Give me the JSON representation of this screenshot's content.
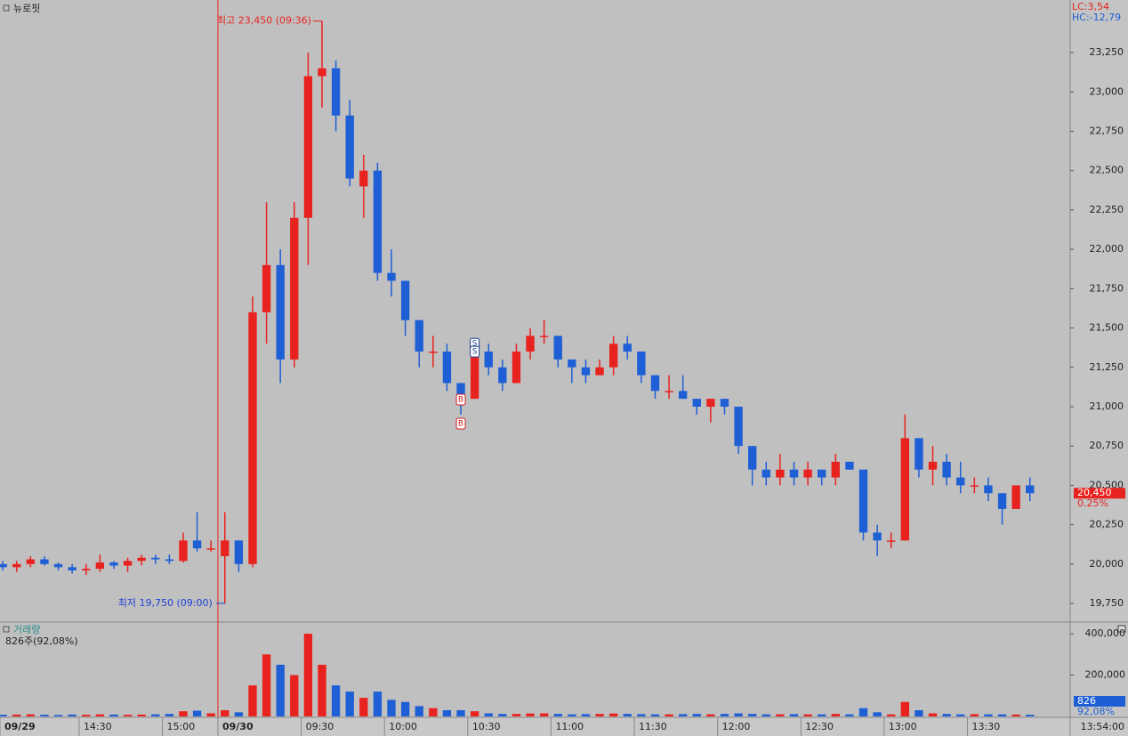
{
  "chart_data": {
    "type": "candlestick",
    "title": "뉴로핏",
    "indicators": [
      "LC:3,54",
      "HC:-12,79"
    ],
    "high_note": "최고 23,450 (09:36)",
    "low_note": "최저 19,750 (09:00)",
    "open": [
      20000,
      19980,
      20000,
      20030,
      20000,
      19980,
      19960,
      19970,
      20010,
      19990,
      20020,
      20040,
      20030,
      20020,
      20150,
      20100,
      20050,
      20150,
      20000,
      21600,
      21900,
      21300,
      22200,
      23100,
      23150,
      22850,
      22400,
      22500,
      21850,
      21800,
      21550,
      21350,
      21350,
      21150,
      21050,
      21350,
      21250,
      21150,
      21350,
      21450,
      21450,
      21300,
      21250,
      21200,
      21250,
      21400,
      21350,
      21200,
      21100,
      21100,
      21050,
      21000,
      21050,
      21000,
      20750,
      20600,
      20550,
      20600,
      20550,
      20600,
      20550,
      20650,
      20600,
      20200,
      20150,
      20150,
      20800,
      20600,
      20650,
      20550,
      20500,
      20500,
      20450,
      20350,
      20500
    ],
    "high": [
      20020,
      20020,
      20050,
      20050,
      20010,
      20000,
      20000,
      20060,
      20020,
      20040,
      20060,
      20060,
      20060,
      20200,
      20330,
      20150,
      20330,
      20150,
      21700,
      22300,
      22000,
      22300,
      23250,
      23450,
      23200,
      22950,
      22600,
      22550,
      22000,
      21800,
      21550,
      21450,
      21400,
      21150,
      21400,
      21400,
      21300,
      21400,
      21500,
      21550,
      21450,
      21300,
      21300,
      21300,
      21450,
      21450,
      21350,
      21200,
      21200,
      21200,
      21050,
      21050,
      21050,
      21000,
      20750,
      20650,
      20700,
      20650,
      20650,
      20600,
      20700,
      20650,
      20600,
      20250,
      20200,
      20950,
      20800,
      20750,
      20700,
      20650,
      20550,
      20550,
      20450,
      20500,
      20550
    ],
    "low": [
      19960,
      19950,
      19980,
      19990,
      19960,
      19940,
      19930,
      19950,
      19970,
      19950,
      19990,
      20000,
      20000,
      20010,
      20080,
      20080,
      19750,
      19950,
      19980,
      21400,
      21150,
      21250,
      21900,
      22900,
      22750,
      22400,
      22200,
      21800,
      21700,
      21450,
      21250,
      21250,
      21100,
      20950,
      21050,
      21200,
      21100,
      21150,
      21300,
      21400,
      21250,
      21150,
      21150,
      21200,
      21200,
      21300,
      21150,
      21050,
      21050,
      21050,
      20950,
      20900,
      20950,
      20700,
      20500,
      20500,
      20500,
      20500,
      20500,
      20500,
      20500,
      20600,
      20150,
      20050,
      20100,
      20150,
      20550,
      20500,
      20500,
      20450,
      20450,
      20400,
      20250,
      20350,
      20400
    ],
    "close": [
      19980,
      20000,
      20030,
      20000,
      19980,
      19960,
      19970,
      20010,
      19990,
      20020,
      20040,
      20030,
      20020,
      20150,
      20100,
      20100,
      20150,
      20000,
      21600,
      21900,
      21300,
      22200,
      23100,
      23150,
      22850,
      22450,
      22500,
      21850,
      21800,
      21550,
      21350,
      21350,
      21150,
      21050,
      21350,
      21250,
      21150,
      21350,
      21450,
      21450,
      21300,
      21250,
      21200,
      21250,
      21400,
      21350,
      21200,
      21100,
      21100,
      21050,
      21000,
      21050,
      21000,
      20750,
      20600,
      20550,
      20600,
      20550,
      20600,
      20550,
      20650,
      20600,
      20200,
      20150,
      20150,
      20800,
      20600,
      20650,
      20550,
      20500,
      20500,
      20450,
      20350,
      20500,
      20450
    ],
    "volume": [
      8000,
      9000,
      10000,
      8000,
      7000,
      9000,
      8000,
      10000,
      9000,
      8000,
      9000,
      10000,
      12000,
      25000,
      28000,
      15000,
      30000,
      20000,
      150000,
      300000,
      250000,
      200000,
      400000,
      250000,
      150000,
      120000,
      90000,
      120000,
      80000,
      70000,
      50000,
      40000,
      30000,
      30000,
      25000,
      15000,
      12000,
      12000,
      14000,
      15000,
      12000,
      10000,
      11000,
      12000,
      14000,
      12000,
      11000,
      10000,
      10000,
      11000,
      12000,
      10000,
      12000,
      15000,
      12000,
      10000,
      10000,
      11000,
      10000,
      10000,
      12000,
      10000,
      40000,
      20000,
      10000,
      70000,
      30000,
      15000,
      12000,
      10000,
      11000,
      10000,
      10000,
      9000,
      8000
    ],
    "up_color": "#e8231f",
    "down_color": "#1f5fd6",
    "xlim": [
      -0.2,
      76.9
    ],
    "xticks": [
      {
        "value": -0.2,
        "label": "09/29"
      },
      {
        "value": 5.5,
        "label": "14:30"
      },
      {
        "value": 11.5,
        "label": "15:00"
      },
      {
        "value": 15.5,
        "label": "09/30"
      },
      {
        "value": 21.5,
        "label": "09:30"
      },
      {
        "value": 27.5,
        "label": "10:00"
      },
      {
        "value": 33.5,
        "label": "10:30"
      },
      {
        "value": 39.5,
        "label": "11:00"
      },
      {
        "value": 45.5,
        "label": "11:30"
      },
      {
        "value": 51.5,
        "label": "12:00"
      },
      {
        "value": 57.5,
        "label": "12:30"
      },
      {
        "value": 63.5,
        "label": "13:00"
      },
      {
        "value": 69.5,
        "label": "13:30"
      }
    ],
    "last_time": "13:54:00",
    "ylim": [
      19637,
      23584
    ],
    "yticks": [
      {
        "value": 19750,
        "label": "19,750"
      },
      {
        "value": 20000,
        "label": "20,000"
      },
      {
        "value": 20250,
        "label": "20,250"
      },
      {
        "value": 20500,
        "label": "20,500"
      },
      {
        "value": 20750,
        "label": "20,750"
      },
      {
        "value": 21000,
        "label": "21,000"
      },
      {
        "value": 21250,
        "label": "21,250"
      },
      {
        "value": 21500,
        "label": "21,500"
      },
      {
        "value": 21750,
        "label": "21,750"
      },
      {
        "value": 22000,
        "label": "22,000"
      },
      {
        "value": 22250,
        "label": "22,250"
      },
      {
        "value": 22500,
        "label": "22,500"
      },
      {
        "value": 22750,
        "label": "22,750"
      },
      {
        "value": 23000,
        "label": "23,000"
      },
      {
        "value": 23250,
        "label": "23,250"
      }
    ],
    "last_price": {
      "value": 20450,
      "label": "20,450"
    },
    "change": "0.25%",
    "signals": [
      {
        "label": "S",
        "x": 34,
        "y": 21400
      },
      {
        "label": "S",
        "x": 34,
        "y": 21350
      },
      {
        "label": "B",
        "x": 33,
        "y": 21045
      },
      {
        "label": "B",
        "x": 33,
        "y": 20892
      }
    ],
    "volume_title": "거래량",
    "volume_note": "826주(92,08%)",
    "volume_ylim": [
      0,
      452000
    ],
    "volume_yticks": [
      {
        "value": 200000,
        "label": "200,000"
      },
      {
        "value": 400000,
        "label": "400,000"
      }
    ],
    "last_volume": {
      "value": 826,
      "label": "826"
    },
    "volume_ratio": "92,08%"
  }
}
